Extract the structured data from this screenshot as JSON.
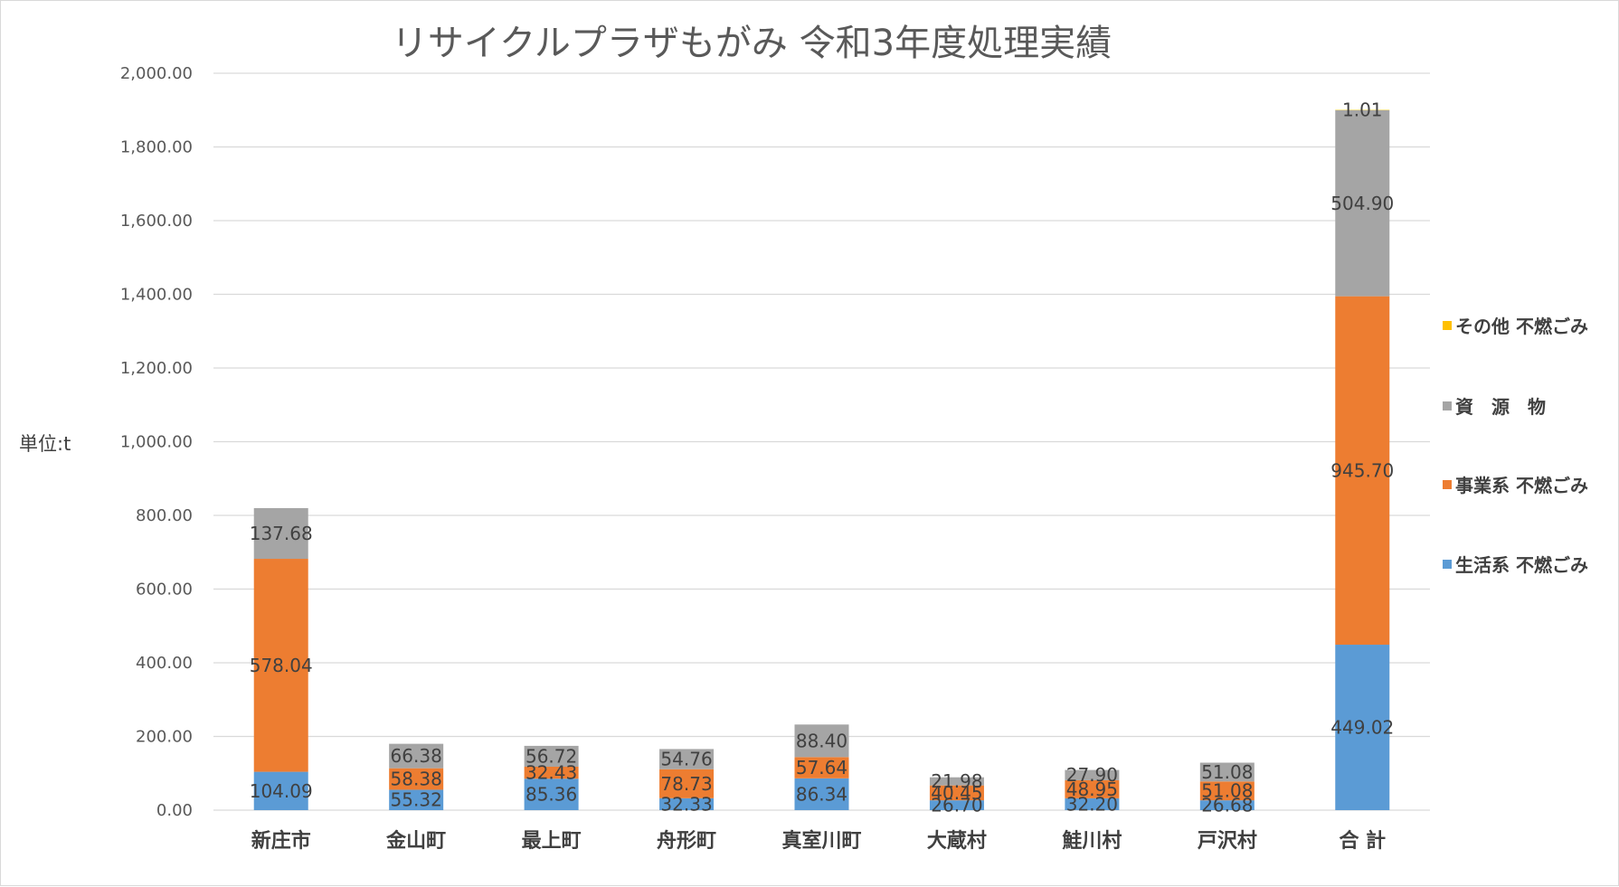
{
  "chart_data": {
    "type": "bar",
    "stacked": true,
    "title": "リサイクルプラザもがみ 令和3年度処理実績",
    "ylabel": "単位:t",
    "ylim": [
      0,
      2000
    ],
    "yticks": [
      "0.00",
      "200.00",
      "400.00",
      "600.00",
      "800.00",
      "1,000.00",
      "1,200.00",
      "1,400.00",
      "1,600.00",
      "1,800.00",
      "2,000.00"
    ],
    "grid": true,
    "legend_position": "right",
    "categories": [
      "新庄市",
      "金山町",
      "最上町",
      "舟形町",
      "真室川町",
      "大蔵村",
      "鮭川村",
      "戸沢村",
      "合 計"
    ],
    "series": [
      {
        "name": "生活系 不燃ごみ",
        "color": "#5b9bd5",
        "values": [
          104.09,
          55.32,
          85.36,
          32.33,
          86.34,
          26.7,
          32.2,
          26.68,
          449.02
        ],
        "labels": [
          "104.09",
          "55.32",
          "85.36",
          "32.33",
          "86.34",
          "26.70",
          "32.20",
          "26.68",
          "449.02"
        ]
      },
      {
        "name": "事業系 不燃ごみ",
        "color": "#ed7d31",
        "values": [
          578.04,
          58.38,
          32.43,
          78.73,
          57.64,
          40.45,
          48.95,
          51.08,
          945.7
        ],
        "labels": [
          "578.04",
          "58.38",
          "32.43",
          "78.73",
          "57.64",
          "40.45",
          "48.95",
          "51.08",
          "945.70"
        ]
      },
      {
        "name": "資　源　物",
        "color": "#a5a5a5",
        "values": [
          137.68,
          66.38,
          56.72,
          54.76,
          88.4,
          21.98,
          27.9,
          51.08,
          504.9
        ],
        "labels": [
          "137.68",
          "66.38",
          "56.72",
          "54.76",
          "88.40",
          "21.98",
          "27.90",
          "51.08",
          "504.90"
        ]
      },
      {
        "name": "その他 不燃ごみ",
        "color": "#ffc000",
        "values": [
          0,
          0,
          0,
          0,
          0,
          0,
          0,
          0,
          1.01
        ],
        "labels": [
          "",
          "",
          "",
          "",
          "",
          "",
          "",
          "",
          "1.01"
        ]
      }
    ],
    "legend_order": [
      "その他 不燃ごみ",
      "資　源　物",
      "事業系 不燃ごみ",
      "生活系 不燃ごみ"
    ]
  }
}
